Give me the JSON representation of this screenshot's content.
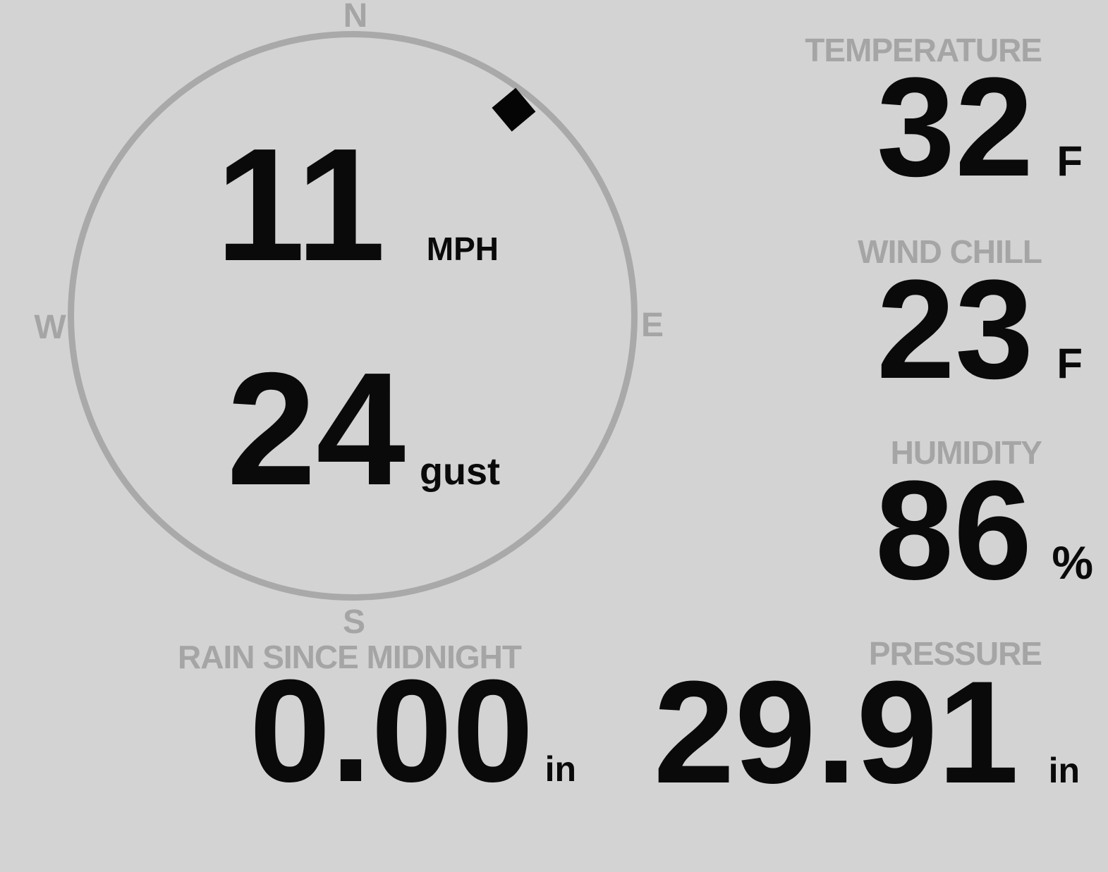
{
  "colors": {
    "background": "#d3d3d3",
    "muted_gray": "#a5a5a5",
    "ring_gray": "#a9a9a9",
    "value_black": "#0a0a0a"
  },
  "wind": {
    "compass": {
      "north": "N",
      "east": "E",
      "south": "S",
      "west": "W"
    },
    "direction_degrees": 38,
    "speed": {
      "value": "11",
      "unit": "MPH"
    },
    "gust": {
      "value": "24",
      "unit": "gust"
    }
  },
  "metrics": [
    {
      "id": "temperature",
      "label": "TEMPERATURE",
      "value": "32",
      "unit": "F"
    },
    {
      "id": "wind-chill",
      "label": "WIND CHILL",
      "value": "23",
      "unit": "F"
    },
    {
      "id": "humidity",
      "label": "HUMIDITY",
      "value": "86",
      "unit": "%"
    }
  ],
  "bottom": [
    {
      "id": "rain-since-midnight",
      "label": "RAIN SINCE MIDNIGHT",
      "value": "0.00",
      "unit": "in"
    },
    {
      "id": "pressure",
      "label": "PRESSURE",
      "value": "29.91",
      "unit": "in"
    }
  ]
}
